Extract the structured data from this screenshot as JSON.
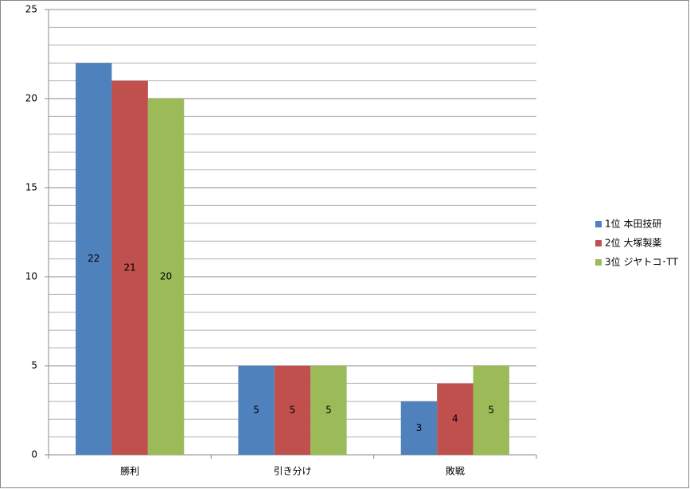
{
  "chart_data": {
    "type": "bar",
    "categories": [
      "勝利",
      "引き分け",
      "敗戦"
    ],
    "series": [
      {
        "name": "1位 本田技研",
        "color": "#4f81bd",
        "values": [
          22,
          5,
          3
        ]
      },
      {
        "name": "2位 大塚製薬",
        "color": "#c0504d",
        "values": [
          21,
          5,
          4
        ]
      },
      {
        "name": "3位 ジヤトコ･TT",
        "color": "#9bbb59",
        "values": [
          20,
          5,
          5
        ]
      }
    ],
    "ylim": [
      0,
      25
    ],
    "yticks": [
      0,
      5,
      10,
      15,
      20,
      25
    ],
    "minor_gridlines": [
      1,
      2,
      3,
      4,
      6,
      7,
      8,
      9,
      11,
      12,
      13,
      14,
      16,
      17,
      18,
      19,
      21,
      22,
      23,
      24
    ],
    "grid": true,
    "data_labels": true,
    "legend": "right"
  }
}
